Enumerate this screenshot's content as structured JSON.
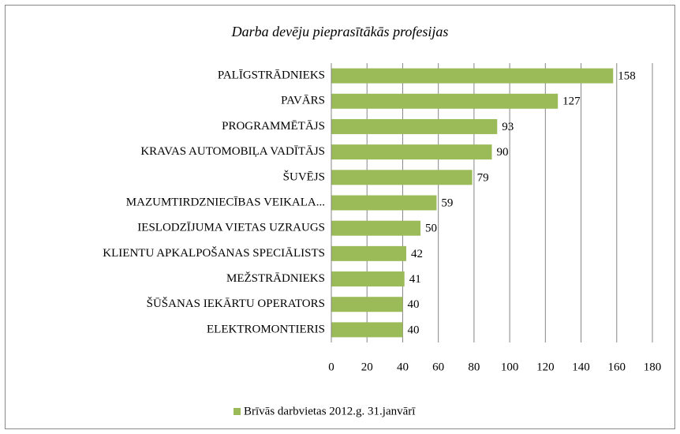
{
  "chart_data": {
    "type": "bar",
    "orientation": "horizontal",
    "title": "Darba devēju pieprasītākās profesijas",
    "categories": [
      "PALĪGSTRĀDNIEKS",
      "PAVĀRS",
      "PROGRAMMĒTĀJS",
      "KRAVAS AUTOMOBIĻA VADĪTĀJS",
      "ŠUVĒJS",
      "MAZUMTIRDZNIECĪBAS VEIKALA...",
      "IESLODZĪJUMA VIETAS UZRAUGS",
      "KLIENTU APKALPOŠANAS SPECIĀLISTS",
      "MEŽSTRĀDNIEKS",
      "ŠŪŠANAS IEKĀRTU OPERATORS",
      "ELEKTROMONTIERIS"
    ],
    "series": [
      {
        "name": "Brīvās darbvietas 2012.g. 31.janvārī",
        "color": "#9bbb59",
        "values": [
          158,
          127,
          93,
          90,
          79,
          59,
          50,
          42,
          41,
          40,
          40
        ]
      }
    ],
    "xlim": [
      0,
      180
    ],
    "xticks": [
      0,
      20,
      40,
      60,
      80,
      100,
      120,
      140,
      160,
      180
    ],
    "grid": true,
    "legend": "bottom"
  }
}
